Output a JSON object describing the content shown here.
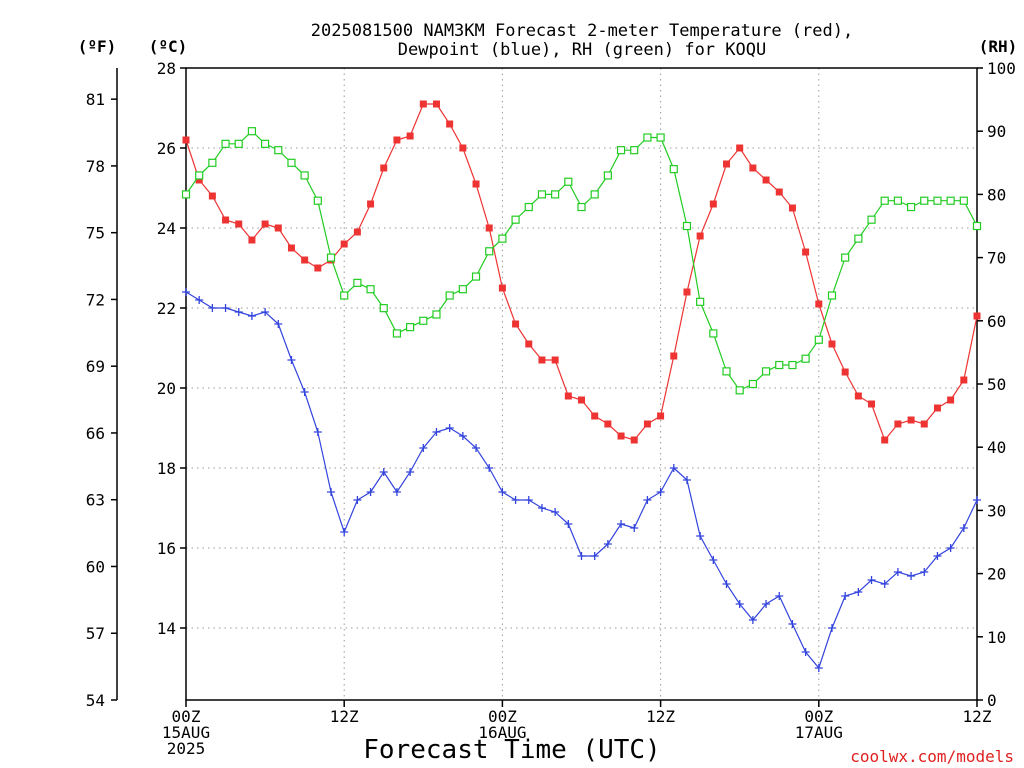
{
  "title_line1": "2025081500 NAM3KM Forecast 2-meter Temperature (red),",
  "title_line2": "Dewpoint (blue), RH (green) for KOQU",
  "units": {
    "fahrenheit": "(ºF)",
    "celsius": "(ºC)",
    "rh": "(RH)"
  },
  "xlabel": "Forecast Time (UTC)",
  "credit": "coolwx.com/models",
  "colors": {
    "temperature": "#ee3333",
    "dewpoint": "#3344dd",
    "rh": "#22cc22"
  },
  "chart_data": {
    "type": "line",
    "x_unit": "forecast hour",
    "xlim": [
      0,
      60
    ],
    "x_tick_labels": [
      {
        "hour": 0,
        "lines": [
          "00Z",
          "15AUG",
          "2025"
        ]
      },
      {
        "hour": 12,
        "lines": [
          "12Z"
        ]
      },
      {
        "hour": 24,
        "lines": [
          "00Z",
          "16AUG"
        ]
      },
      {
        "hour": 36,
        "lines": [
          "12Z"
        ]
      },
      {
        "hour": 48,
        "lines": [
          "00Z",
          "17AUG"
        ]
      },
      {
        "hour": 60,
        "lines": [
          "12Z"
        ]
      }
    ],
    "y_celsius": {
      "lim": [
        12.2,
        28
      ],
      "ticks": [
        14,
        16,
        18,
        20,
        22,
        24,
        26,
        28
      ]
    },
    "y_fahrenheit": {
      "lim": [
        54,
        82.4
      ],
      "ticks": [
        54,
        57,
        60,
        63,
        66,
        69,
        72,
        75,
        78,
        81
      ]
    },
    "y_rh": {
      "lim": [
        0,
        100
      ],
      "ticks": [
        0,
        10,
        20,
        30,
        40,
        50,
        60,
        70,
        80,
        90,
        100
      ]
    },
    "grid": true,
    "series": [
      {
        "name": "Temperature",
        "axis": "celsius",
        "marker": "filled-square",
        "values": [
          26.2,
          25.2,
          24.8,
          24.2,
          24.1,
          23.7,
          24.1,
          24.0,
          23.5,
          23.2,
          23.0,
          23.2,
          23.6,
          23.9,
          24.6,
          25.5,
          26.2,
          26.3,
          27.1,
          27.1,
          26.6,
          26.0,
          25.1,
          24.0,
          22.5,
          21.6,
          21.1,
          20.7,
          20.7,
          19.8,
          19.7,
          19.3,
          19.1,
          18.8,
          18.7,
          19.1,
          19.3,
          20.8,
          22.4,
          23.8,
          24.6,
          25.6,
          26.0,
          25.5,
          25.2,
          24.9,
          24.5,
          23.4,
          22.1,
          21.1,
          20.4,
          19.8,
          19.6,
          18.7,
          19.1,
          19.2,
          19.1,
          19.5,
          19.7,
          20.2,
          21.8
        ]
      },
      {
        "name": "Dewpoint",
        "axis": "celsius",
        "marker": "plus",
        "values": [
          22.4,
          22.2,
          22.0,
          22.0,
          21.9,
          21.8,
          21.9,
          21.6,
          20.7,
          19.9,
          18.9,
          17.4,
          16.4,
          17.2,
          17.4,
          17.9,
          17.4,
          17.9,
          18.5,
          18.9,
          19.0,
          18.8,
          18.5,
          18.0,
          17.4,
          17.2,
          17.2,
          17.0,
          16.9,
          16.6,
          15.8,
          15.8,
          16.1,
          16.6,
          16.5,
          17.2,
          17.4,
          18.0,
          17.7,
          16.3,
          15.7,
          15.1,
          14.6,
          14.2,
          14.6,
          14.8,
          14.1,
          13.4,
          13.0,
          14.0,
          14.8,
          14.9,
          15.2,
          15.1,
          15.4,
          15.3,
          15.4,
          15.8,
          16.0,
          16.5,
          17.2
        ]
      },
      {
        "name": "RH",
        "axis": "rh",
        "marker": "open-square",
        "values": [
          80,
          83,
          85,
          88,
          88,
          90,
          88,
          87,
          85,
          83,
          79,
          70,
          64,
          66,
          65,
          62,
          58,
          59,
          60,
          61,
          64,
          65,
          67,
          71,
          73,
          76,
          78,
          80,
          80,
          82,
          78,
          80,
          83,
          87,
          87,
          89,
          89,
          84,
          75,
          63,
          58,
          52,
          49,
          50,
          52,
          53,
          53,
          54,
          57,
          64,
          70,
          73,
          76,
          79,
          79,
          78,
          79,
          79,
          79,
          79,
          75
        ]
      }
    ]
  }
}
